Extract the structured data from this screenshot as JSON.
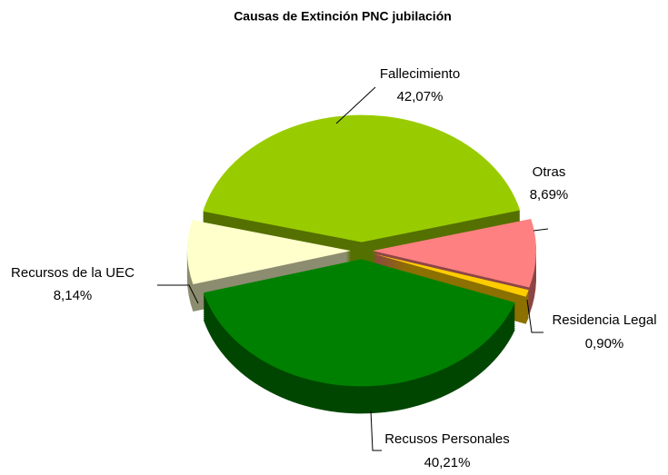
{
  "chart_data": {
    "type": "pie",
    "title": "Causas de Extinción PNC jubilación",
    "categories": [
      "Fallecimiento",
      "Otras",
      "Residencia Legal",
      "Recusos Personales",
      "Recursos de la UEC"
    ],
    "values": [
      42.07,
      8.69,
      0.9,
      40.21,
      8.14
    ],
    "value_labels": [
      "42,07%",
      "8,69%",
      "0,90%",
      "40,21%",
      "8,14%"
    ],
    "colors": [
      "#99cc00",
      "#ff8080",
      "#ffcc00",
      "#008000",
      "#ffffcc"
    ]
  }
}
